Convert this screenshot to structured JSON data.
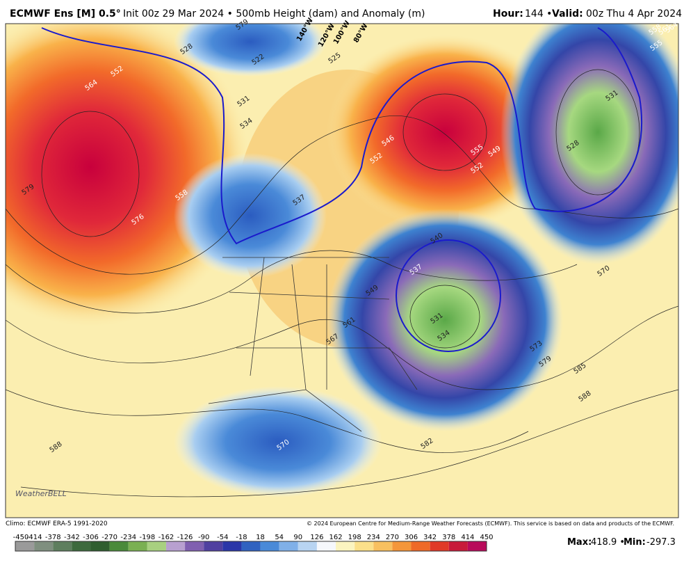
{
  "header": {
    "model": "ECMWF Ens [M] 0.5°",
    "init": "Init 00z 29 Mar 2024 • 500mb Height (dam) and Anomaly (m)",
    "hour_label": "Hour:",
    "hour": "144 •",
    "valid_label": "Valid:",
    "valid": "00z Thu 4 Apr 2024"
  },
  "map": {
    "longitude_labels": [
      "140°W",
      "120°W",
      "100°W",
      "80°W"
    ],
    "contour_labels": [
      "579",
      "564",
      "552",
      "576",
      "558",
      "528",
      "522",
      "579",
      "531",
      "534",
      "537",
      "525",
      "540",
      "537",
      "546",
      "552",
      "555",
      "549",
      "552",
      "531",
      "528",
      "558",
      "561",
      "564",
      "555",
      "570",
      "573",
      "579",
      "585",
      "588",
      "582",
      "570",
      "588",
      "561",
      "567",
      "549",
      "531",
      "534"
    ],
    "logo": "WeatherBELL"
  },
  "footer": {
    "climo": "Climo: ECMWF ERA-5 1991-2020",
    "copyright": "© 2024 European Centre for Medium-Range Weather Forecasts (ECMWF). This service is based on data and products of the ECMWF."
  },
  "colorbar": {
    "labels": [
      "-450",
      "-414",
      "-378",
      "-342",
      "-306",
      "-270",
      "-234",
      "-198",
      "-162",
      "-126",
      "-90",
      "-54",
      "-18",
      "18",
      "54",
      "90",
      "126",
      "162",
      "198",
      "234",
      "270",
      "306",
      "342",
      "378",
      "414",
      "450"
    ]
  },
  "stats": {
    "max_label": "Max:",
    "max": "418.9 •",
    "min_label": "Min:",
    "min": "-297.3"
  }
}
